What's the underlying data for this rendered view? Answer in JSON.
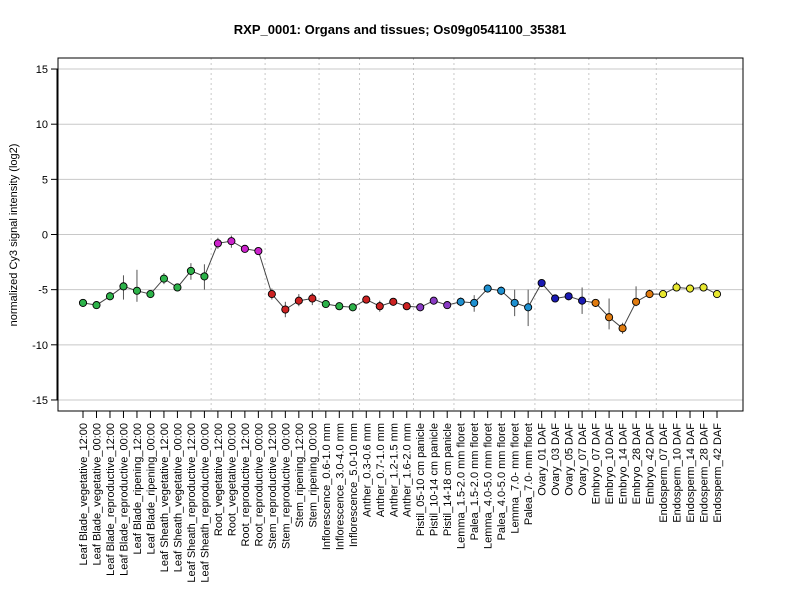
{
  "chart_data": {
    "type": "line",
    "title": "RXP_0001: Organs and tissues; Os09g0541100_35381",
    "xlabel": "",
    "ylabel": "normalized Cy3 signal intensity (log2)",
    "ylim": [
      -16,
      16
    ],
    "yticks": [
      -15,
      -10,
      -5,
      0,
      5,
      10,
      15
    ],
    "grid": true,
    "categories": [
      "Leaf Blade_vegetative_12:00",
      "Leaf Blade_vegetative_00:00",
      "Leaf Blade_reproductive_12:00",
      "Leaf Blade_reproductive_00:00",
      "Leaf Blade_ripening_12:00",
      "Leaf Blade_ripening_00:00",
      "Leaf Sheath_vegetative_12:00",
      "Leaf Sheath_vegetative_00:00",
      "Leaf Sheath_reproductive_12:00",
      "Leaf Sheath_reproductive_00:00",
      "Root_vegetative_12:00",
      "Root_vegetative_00:00",
      "Root_reproductive_12:00",
      "Root_reproductive_00:00",
      "Stem_reproductive_12:00",
      "Stem_reproductive_00:00",
      "Stem_ripening_12:00",
      "Stem_ripening_00:00",
      "Inflorescence_0.6-1.0 mm",
      "Inflorescence_3.0-4.0 mm",
      "Inflorescence_5.0-10 mm",
      "Anther_0.3-0.6 mm",
      "Anther_0.7-1.0 mm",
      "Anther_1.2-1.5 mm",
      "Anther_1.6-2.0 mm",
      "Pistil_05-10 cm panicle",
      "Pistil_10-14 cm panicle",
      "Pistil_14-18 cm panicle",
      "Lemma_1.5-2.0 mm floret",
      "Palea_1.5-2.0 mm floret",
      "Lemma_4.0-5.0 mm floret",
      "Palea_4.0-5.0 mm floret",
      "Lemma_7.0- mm floret",
      "Palea_7.0- mm floret",
      "Ovary_01 DAF",
      "Ovary_03 DAF",
      "Ovary_05 DAF",
      "Ovary_07 DAF",
      "Embryo_07 DAF",
      "Embryo_10 DAF",
      "Embryo_14 DAF",
      "Embryo_28 DAF",
      "Embryo_42 DAF",
      "Endosperm_07 DAF",
      "Endosperm_10 DAF",
      "Endosperm_14 DAF",
      "Endosperm_28 DAF",
      "Endosperm_42 DAF"
    ],
    "values": [
      -6.2,
      -6.4,
      -5.6,
      -4.7,
      -5.1,
      -5.4,
      -4.0,
      -4.8,
      -3.3,
      -3.8,
      -0.8,
      -0.6,
      -1.3,
      -1.5,
      -5.4,
      -6.8,
      -6.0,
      -5.8,
      -6.3,
      -6.5,
      -6.6,
      -5.9,
      -6.5,
      -6.1,
      -6.5,
      -6.6,
      -6.0,
      -6.4,
      -6.1,
      -6.2,
      -4.9,
      -5.1,
      -6.2,
      -6.6,
      -4.4,
      -5.8,
      -5.6,
      -6.0,
      -6.2,
      -7.5,
      -8.5,
      -6.1,
      -5.4,
      -5.4,
      -4.8,
      -4.9,
      -4.8,
      -5.4
    ],
    "error_low": [
      null,
      null,
      -5.9,
      -5.9,
      -6.1,
      null,
      -4.5,
      null,
      -4.1,
      -5.0,
      -1.3,
      -1.2,
      null,
      null,
      -5.9,
      -7.5,
      -6.5,
      -6.4,
      -6.6,
      null,
      null,
      null,
      -7.0,
      null,
      -6.8,
      -6.9,
      null,
      null,
      -6.5,
      -7.0,
      -5.2,
      -5.5,
      -7.4,
      -8.3,
      null,
      -6.0,
      -5.9,
      -7.2,
      -6.5,
      -8.6,
      -9.0,
      -6.5,
      -5.7,
      -5.6,
      -5.1,
      -5.1,
      -5.1,
      -5.6
    ],
    "error_high": [
      null,
      null,
      -5.2,
      -3.7,
      -3.2,
      null,
      -3.5,
      null,
      -2.6,
      -2.7,
      -0.3,
      -0.1,
      null,
      null,
      -4.9,
      -6.1,
      -5.4,
      -5.3,
      -6.0,
      null,
      null,
      null,
      -6.0,
      null,
      -6.2,
      -6.3,
      null,
      null,
      -5.7,
      -5.5,
      -4.6,
      -4.7,
      -5.0,
      -5.0,
      null,
      -5.6,
      -5.3,
      -4.8,
      -5.9,
      -5.8,
      -8.0,
      -4.7,
      -5.0,
      -5.2,
      -4.3,
      -4.6,
      -4.4,
      -5.2
    ],
    "point_colors": [
      "#2db34a",
      "#2db34a",
      "#2db34a",
      "#2db34a",
      "#2db34a",
      "#2db34a",
      "#2db34a",
      "#2db34a",
      "#2db34a",
      "#2db34a",
      "#cc22cc",
      "#cc22cc",
      "#cc22cc",
      "#cc22cc",
      "#cc2222",
      "#cc2222",
      "#cc2222",
      "#cc2222",
      "#2db34a",
      "#2db34a",
      "#2db34a",
      "#cc2222",
      "#cc2222",
      "#cc2222",
      "#cc2222",
      "#8a3bc4",
      "#8a3bc4",
      "#8a3bc4",
      "#1e90d0",
      "#1e90d0",
      "#1e90d0",
      "#1e90d0",
      "#1e90d0",
      "#1e90d0",
      "#1a1ab3",
      "#1a1ab3",
      "#1a1ab3",
      "#1a1ab3",
      "#e07b10",
      "#e07b10",
      "#e07b10",
      "#e07b10",
      "#e07b10",
      "#e8e830",
      "#e8e830",
      "#e8e830",
      "#e8e830",
      "#e8e830"
    ],
    "vertical_separators_after": [
      9,
      13,
      17,
      20,
      24,
      27,
      33,
      37,
      42
    ]
  }
}
